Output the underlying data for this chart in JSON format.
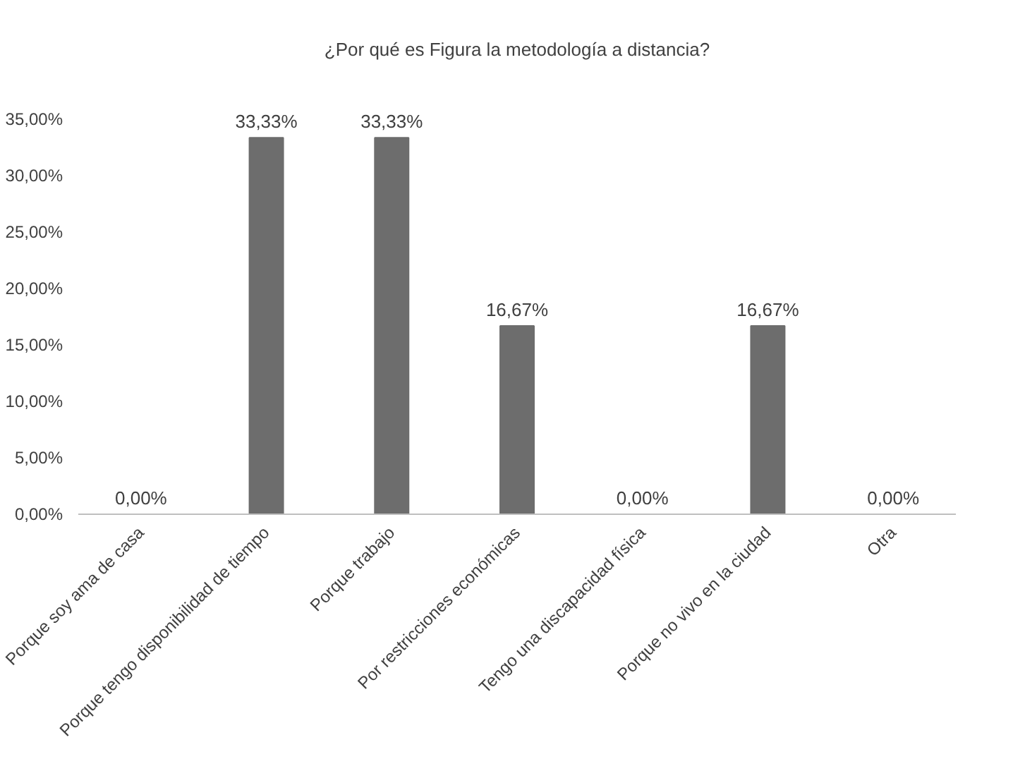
{
  "chart_data": {
    "type": "bar",
    "title": "¿Por qué es Figura la metodología a distancia?",
    "categories": [
      "Porque soy ama de casa",
      "Porque tengo disponibilidad de tiempo",
      "Porque trabajo",
      "Por restricciones económicas",
      "Tengo una discapacidad física",
      "Porque no vivo en la ciudad",
      "Otra"
    ],
    "values": [
      0,
      33.33,
      33.33,
      16.67,
      0,
      16.67,
      0
    ],
    "value_labels": [
      "0,00%",
      "33,33%",
      "33,33%",
      "16,67%",
      "0,00%",
      "16,67%",
      "0,00%"
    ],
    "color": "#6d6d6d",
    "ylim": [
      0,
      35
    ],
    "yticks": [
      {
        "value": 0,
        "label": "0,00%"
      },
      {
        "value": 5,
        "label": "5,00%"
      },
      {
        "value": 10,
        "label": "10,00%"
      },
      {
        "value": 15,
        "label": "15,00%"
      },
      {
        "value": 20,
        "label": "20,00%"
      },
      {
        "value": 25,
        "label": "25,00%"
      },
      {
        "value": 30,
        "label": "30,00%"
      },
      {
        "value": 35,
        "label": "35,00%"
      }
    ],
    "grid": false
  }
}
